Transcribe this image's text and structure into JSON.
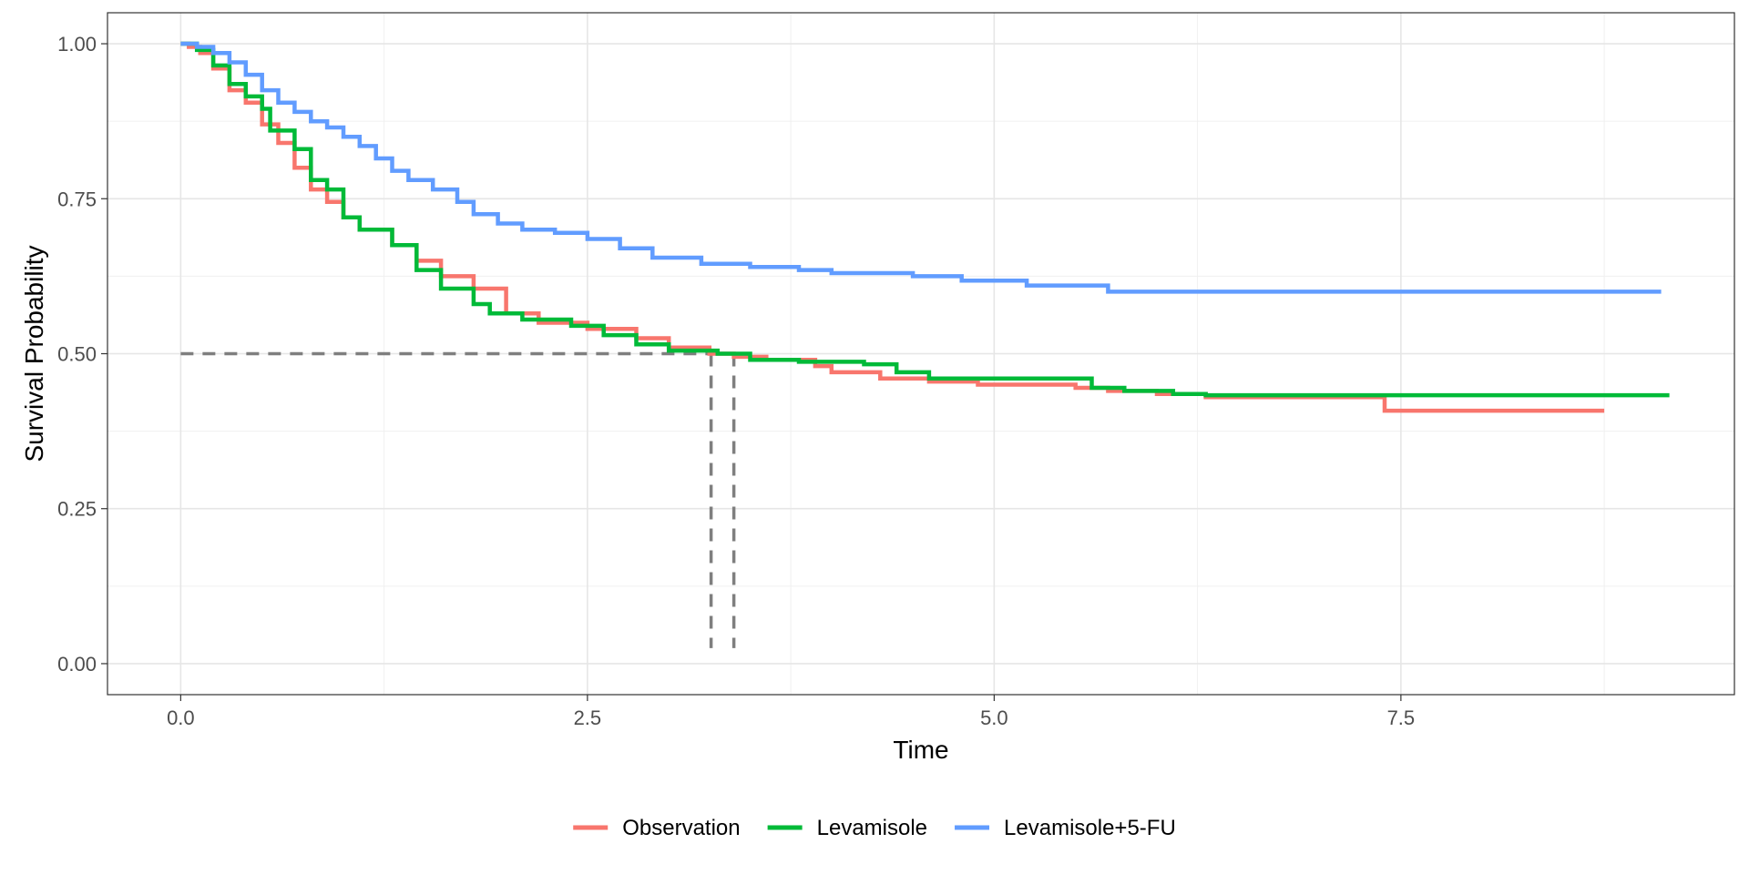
{
  "chart_data": {
    "type": "line",
    "subtype": "step",
    "title": "",
    "xlabel": "Time",
    "ylabel": "Survival Probability",
    "xlim": [
      -0.45,
      9.55
    ],
    "ylim": [
      -0.05,
      1.05
    ],
    "x_ticks": [
      0.0,
      2.5,
      5.0,
      7.5
    ],
    "x_tick_labels": [
      "0.0",
      "2.5",
      "5.0",
      "7.5"
    ],
    "y_ticks": [
      0.0,
      0.25,
      0.5,
      0.75,
      1.0
    ],
    "y_tick_labels": [
      "0.00",
      "0.25",
      "0.50",
      "0.75",
      "1.00"
    ],
    "grid": true,
    "legend_position": "bottom",
    "series": [
      {
        "name": "Observation",
        "color": "#F8766D",
        "points": [
          [
            0,
            1.0
          ],
          [
            0.05,
            0.995
          ],
          [
            0.12,
            0.985
          ],
          [
            0.2,
            0.96
          ],
          [
            0.3,
            0.925
          ],
          [
            0.4,
            0.905
          ],
          [
            0.5,
            0.87
          ],
          [
            0.6,
            0.84
          ],
          [
            0.7,
            0.8
          ],
          [
            0.8,
            0.765
          ],
          [
            0.9,
            0.745
          ],
          [
            1.0,
            0.72
          ],
          [
            1.1,
            0.7
          ],
          [
            1.3,
            0.675
          ],
          [
            1.45,
            0.65
          ],
          [
            1.6,
            0.625
          ],
          [
            1.8,
            0.605
          ],
          [
            2.0,
            0.565
          ],
          [
            2.2,
            0.55
          ],
          [
            2.5,
            0.54
          ],
          [
            2.8,
            0.525
          ],
          [
            3.0,
            0.51
          ],
          [
            3.25,
            0.5
          ],
          [
            3.4,
            0.495
          ],
          [
            3.6,
            0.49
          ],
          [
            3.9,
            0.48
          ],
          [
            4.0,
            0.47
          ],
          [
            4.3,
            0.46
          ],
          [
            4.6,
            0.455
          ],
          [
            4.9,
            0.45
          ],
          [
            5.5,
            0.445
          ],
          [
            5.7,
            0.44
          ],
          [
            6.0,
            0.435
          ],
          [
            6.3,
            0.43
          ],
          [
            7.4,
            0.428
          ],
          [
            7.4,
            0.408
          ],
          [
            8.75,
            0.408
          ]
        ]
      },
      {
        "name": "Levamisole",
        "color": "#00BA38",
        "points": [
          [
            0,
            1.0
          ],
          [
            0.1,
            0.99
          ],
          [
            0.2,
            0.965
          ],
          [
            0.3,
            0.935
          ],
          [
            0.4,
            0.915
          ],
          [
            0.5,
            0.895
          ],
          [
            0.55,
            0.86
          ],
          [
            0.7,
            0.83
          ],
          [
            0.8,
            0.78
          ],
          [
            0.9,
            0.765
          ],
          [
            1.0,
            0.72
          ],
          [
            1.1,
            0.7
          ],
          [
            1.3,
            0.675
          ],
          [
            1.45,
            0.635
          ],
          [
            1.6,
            0.605
          ],
          [
            1.8,
            0.58
          ],
          [
            1.9,
            0.565
          ],
          [
            2.1,
            0.555
          ],
          [
            2.4,
            0.545
          ],
          [
            2.6,
            0.53
          ],
          [
            2.8,
            0.515
          ],
          [
            3.0,
            0.505
          ],
          [
            3.3,
            0.5
          ],
          [
            3.5,
            0.49
          ],
          [
            3.8,
            0.487
          ],
          [
            4.2,
            0.483
          ],
          [
            4.4,
            0.47
          ],
          [
            4.6,
            0.46
          ],
          [
            5.0,
            0.46
          ],
          [
            5.6,
            0.445
          ],
          [
            5.8,
            0.44
          ],
          [
            6.1,
            0.435
          ],
          [
            6.3,
            0.433
          ],
          [
            9.15,
            0.433
          ]
        ]
      },
      {
        "name": "Levamisole+5-FU",
        "color": "#619CFF",
        "points": [
          [
            0,
            1.0
          ],
          [
            0.1,
            0.995
          ],
          [
            0.2,
            0.985
          ],
          [
            0.3,
            0.97
          ],
          [
            0.4,
            0.95
          ],
          [
            0.5,
            0.925
          ],
          [
            0.6,
            0.905
          ],
          [
            0.7,
            0.89
          ],
          [
            0.8,
            0.875
          ],
          [
            0.9,
            0.865
          ],
          [
            1.0,
            0.85
          ],
          [
            1.1,
            0.835
          ],
          [
            1.2,
            0.815
          ],
          [
            1.3,
            0.795
          ],
          [
            1.4,
            0.78
          ],
          [
            1.55,
            0.765
          ],
          [
            1.7,
            0.745
          ],
          [
            1.8,
            0.725
          ],
          [
            1.95,
            0.71
          ],
          [
            2.1,
            0.7
          ],
          [
            2.3,
            0.695
          ],
          [
            2.5,
            0.685
          ],
          [
            2.7,
            0.67
          ],
          [
            2.9,
            0.655
          ],
          [
            3.2,
            0.645
          ],
          [
            3.5,
            0.64
          ],
          [
            3.8,
            0.635
          ],
          [
            4.0,
            0.63
          ],
          [
            4.5,
            0.625
          ],
          [
            4.8,
            0.618
          ],
          [
            5.2,
            0.61
          ],
          [
            5.7,
            0.6
          ],
          [
            9.1,
            0.6
          ]
        ]
      }
    ],
    "median_lines": [
      {
        "x": [
          0,
          3.26
        ],
        "y": [
          0.5,
          0.5
        ],
        "style": "dashed",
        "color": "#7F7F7F"
      },
      {
        "x": [
          3.26,
          3.26
        ],
        "y": [
          0.5,
          0.025
        ],
        "style": "dashed",
        "color": "#7F7F7F"
      },
      {
        "x": [
          3.4,
          3.4
        ],
        "y": [
          0.5,
          0.025
        ],
        "style": "dashed",
        "color": "#7F7F7F"
      }
    ],
    "legend": [
      {
        "label": "Observation",
        "color": "#F8766D"
      },
      {
        "label": "Levamisole",
        "color": "#00BA38"
      },
      {
        "label": "Levamisole+5-FU",
        "color": "#619CFF"
      }
    ]
  }
}
